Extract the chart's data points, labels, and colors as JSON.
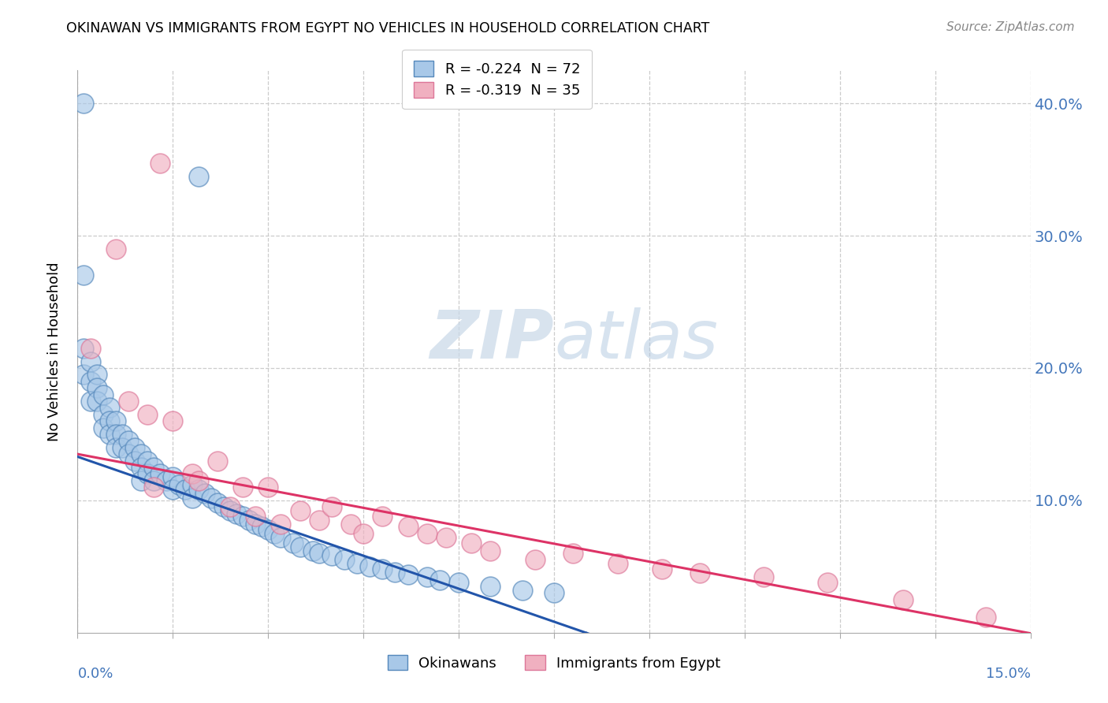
{
  "title": "OKINAWAN VS IMMIGRANTS FROM EGYPT NO VEHICLES IN HOUSEHOLD CORRELATION CHART",
  "source": "Source: ZipAtlas.com",
  "ylabel": "No Vehicles in Household",
  "ytick_values": [
    0.0,
    0.1,
    0.2,
    0.3,
    0.4
  ],
  "ytick_labels": [
    "",
    "10.0%",
    "20.0%",
    "30.0%",
    "40.0%"
  ],
  "xlim": [
    0.0,
    0.15
  ],
  "ylim": [
    0.0,
    0.425
  ],
  "legend_r1": "R = -0.224  N = 72",
  "legend_r2": "R = -0.319  N = 35",
  "color_blue": "#a8c8e8",
  "color_pink": "#f0b0c0",
  "edge_blue": "#5588bb",
  "edge_pink": "#dd7799",
  "line_blue_solid": "#2255aa",
  "line_pink_solid": "#dd3366",
  "watermark_text": "ZIPatlas",
  "okinawan_x": [
    0.001,
    0.019,
    0.001,
    0.001,
    0.001,
    0.002,
    0.002,
    0.002,
    0.003,
    0.003,
    0.003,
    0.004,
    0.004,
    0.004,
    0.005,
    0.005,
    0.005,
    0.006,
    0.006,
    0.006,
    0.007,
    0.007,
    0.008,
    0.008,
    0.009,
    0.009,
    0.01,
    0.01,
    0.01,
    0.011,
    0.011,
    0.012,
    0.012,
    0.013,
    0.014,
    0.015,
    0.015,
    0.016,
    0.017,
    0.018,
    0.018,
    0.019,
    0.02,
    0.021,
    0.022,
    0.023,
    0.024,
    0.025,
    0.026,
    0.027,
    0.028,
    0.029,
    0.03,
    0.031,
    0.032,
    0.034,
    0.035,
    0.037,
    0.038,
    0.04,
    0.042,
    0.044,
    0.046,
    0.048,
    0.05,
    0.052,
    0.055,
    0.057,
    0.06,
    0.065,
    0.07,
    0.075
  ],
  "okinawan_y": [
    0.4,
    0.345,
    0.27,
    0.215,
    0.195,
    0.205,
    0.19,
    0.175,
    0.195,
    0.185,
    0.175,
    0.18,
    0.165,
    0.155,
    0.17,
    0.16,
    0.15,
    0.16,
    0.15,
    0.14,
    0.15,
    0.14,
    0.145,
    0.135,
    0.14,
    0.13,
    0.135,
    0.125,
    0.115,
    0.13,
    0.12,
    0.125,
    0.115,
    0.12,
    0.115,
    0.118,
    0.108,
    0.112,
    0.108,
    0.112,
    0.102,
    0.108,
    0.105,
    0.102,
    0.098,
    0.095,
    0.092,
    0.09,
    0.088,
    0.085,
    0.082,
    0.08,
    0.078,
    0.075,
    0.072,
    0.068,
    0.065,
    0.062,
    0.06,
    0.058,
    0.055,
    0.052,
    0.05,
    0.048,
    0.046,
    0.044,
    0.042,
    0.04,
    0.038,
    0.035,
    0.032,
    0.03
  ],
  "egypt_x": [
    0.013,
    0.006,
    0.002,
    0.008,
    0.011,
    0.015,
    0.012,
    0.018,
    0.019,
    0.022,
    0.024,
    0.026,
    0.028,
    0.03,
    0.032,
    0.035,
    0.038,
    0.04,
    0.043,
    0.045,
    0.048,
    0.052,
    0.055,
    0.058,
    0.062,
    0.065,
    0.072,
    0.078,
    0.085,
    0.092,
    0.098,
    0.108,
    0.118,
    0.13,
    0.143
  ],
  "egypt_y": [
    0.355,
    0.29,
    0.215,
    0.175,
    0.165,
    0.16,
    0.11,
    0.12,
    0.115,
    0.13,
    0.095,
    0.11,
    0.088,
    0.11,
    0.082,
    0.092,
    0.085,
    0.095,
    0.082,
    0.075,
    0.088,
    0.08,
    0.075,
    0.072,
    0.068,
    0.062,
    0.055,
    0.06,
    0.052,
    0.048,
    0.045,
    0.042,
    0.038,
    0.025,
    0.012
  ]
}
